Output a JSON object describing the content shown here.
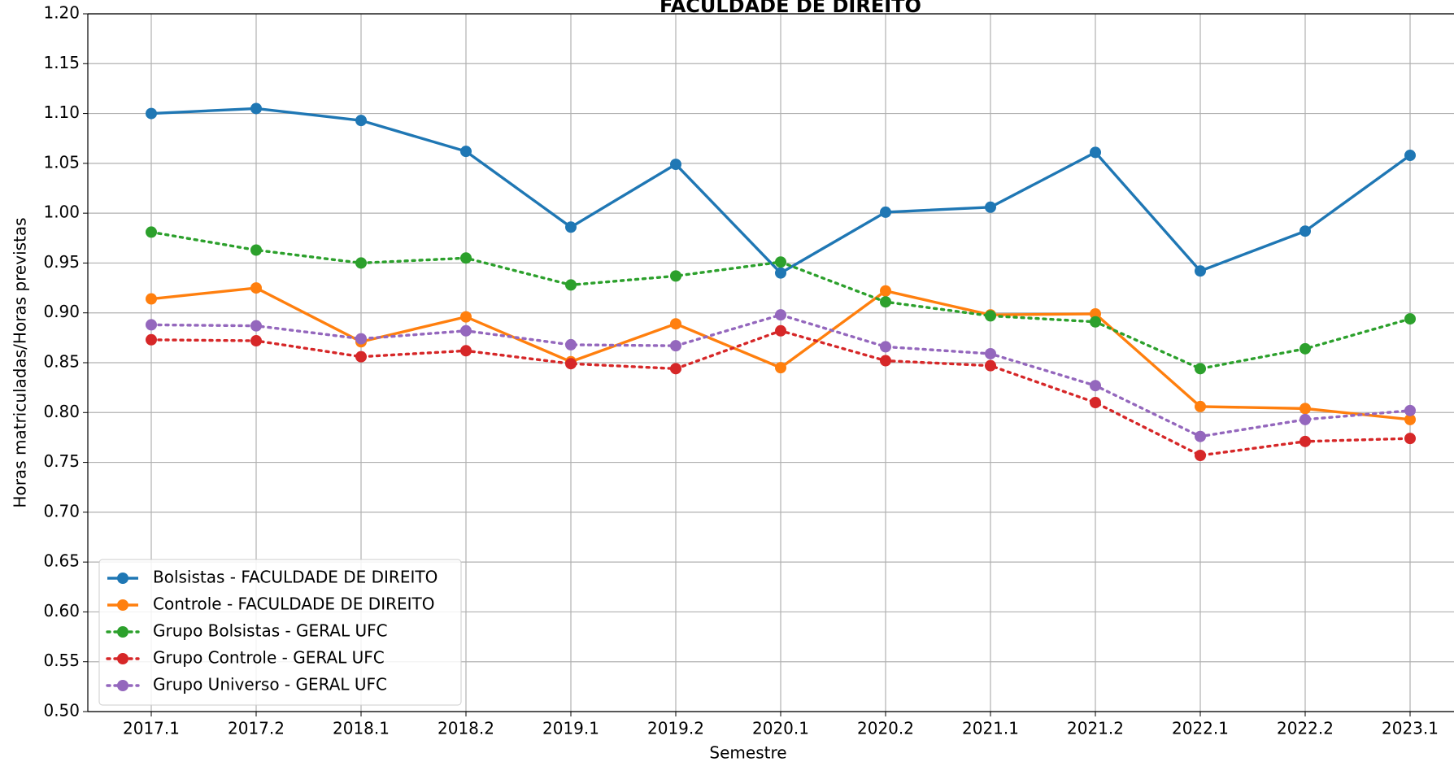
{
  "chart_data": {
    "type": "line",
    "title": "FACULDADE DE DIREITO",
    "x_label": "Semestre",
    "y_label": "Horas matriculadas/Horas previstas",
    "categories": [
      "2017.1",
      "2017.2",
      "2018.1",
      "2018.2",
      "2019.1",
      "2019.2",
      "2020.1",
      "2020.2",
      "2021.1",
      "2021.2",
      "2022.1",
      "2022.2",
      "2023.1"
    ],
    "ylim": [
      0.5,
      1.2
    ],
    "yticks": [
      {
        "value": 0.5,
        "label": "0.50"
      },
      0.55,
      {
        "value": 0.6,
        "label": "0.60"
      },
      0.65,
      {
        "value": 0.7,
        "label": "0.70"
      },
      0.75,
      {
        "value": 0.8,
        "label": "0.80"
      },
      0.85,
      {
        "value": 0.9,
        "label": "0.90"
      },
      0.95,
      {
        "value": 1.0,
        "label": "1.00"
      },
      1.05,
      {
        "value": 1.1,
        "label": "1.10"
      },
      1.15,
      {
        "value": 1.2,
        "label": "1.20"
      }
    ],
    "grid": true,
    "legend": "lower left",
    "series": [
      {
        "name": "Bolsistas - FACULDADE DE DIREITO",
        "color": "#1f77b4",
        "linestyle": "solid",
        "values": [
          1.1,
          1.105,
          1.093,
          1.062,
          0.986,
          1.049,
          0.94,
          1.001,
          1.006,
          1.061,
          0.942,
          0.982,
          1.058
        ]
      },
      {
        "name": "Controle - FACULDADE DE DIREITO",
        "color": "#ff7f0e",
        "linestyle": "solid",
        "values": [
          0.914,
          0.925,
          0.871,
          0.896,
          0.851,
          0.889,
          0.845,
          0.922,
          0.898,
          0.899,
          0.806,
          0.804,
          0.793
        ]
      },
      {
        "name": "Grupo Bolsistas - GERAL UFC",
        "color": "#2ca02c",
        "linestyle": "dotted",
        "values": [
          0.981,
          0.963,
          0.95,
          0.955,
          0.928,
          0.937,
          0.951,
          0.911,
          0.897,
          0.891,
          0.844,
          0.864,
          0.894
        ]
      },
      {
        "name": "Grupo Controle - GERAL UFC",
        "color": "#d62728",
        "linestyle": "dotted",
        "values": [
          0.873,
          0.872,
          0.856,
          0.862,
          0.849,
          0.844,
          0.882,
          0.852,
          0.847,
          0.81,
          0.757,
          0.771,
          0.774
        ]
      },
      {
        "name": "Grupo Universo - GERAL UFC",
        "color": "#9467bd",
        "linestyle": "dotted",
        "values": [
          0.888,
          0.887,
          0.874,
          0.882,
          0.868,
          0.867,
          0.898,
          0.866,
          0.859,
          0.827,
          0.776,
          0.793,
          0.802
        ]
      }
    ]
  }
}
